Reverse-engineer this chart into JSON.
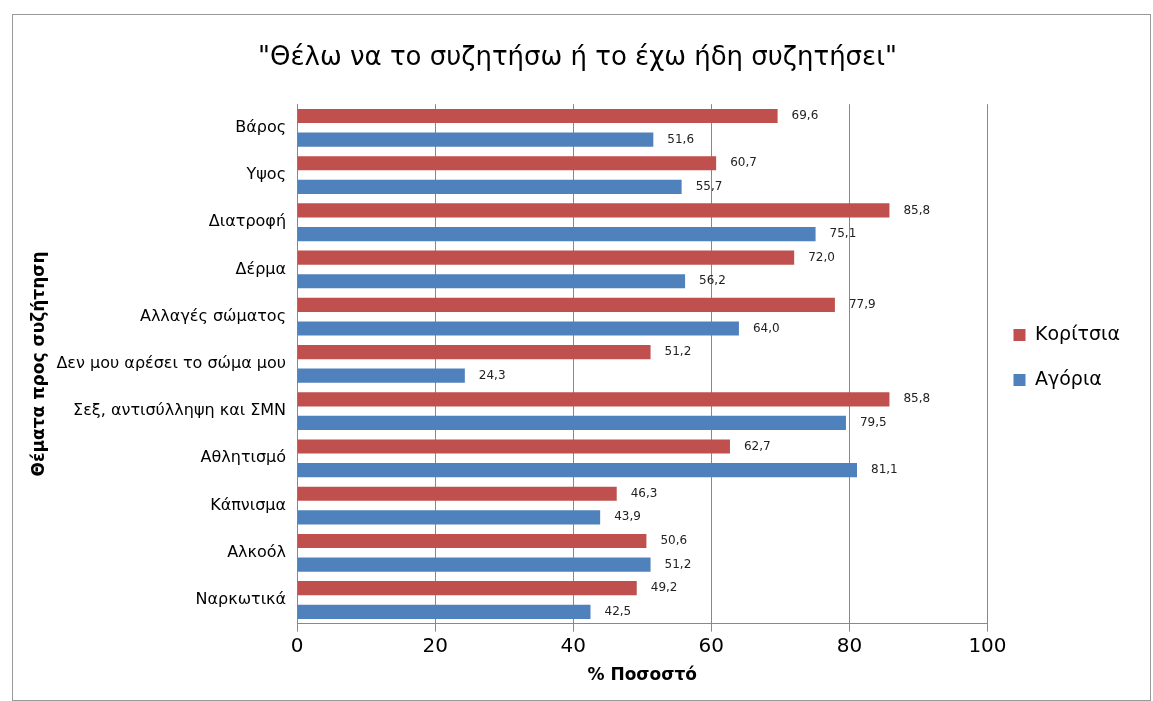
{
  "chart_data": {
    "type": "bar",
    "orientation": "horizontal",
    "title": "\"Θέλω να το συζητήσω ή το έχω ήδη συζητήσει\"",
    "xlabel": "% Ποσοστό",
    "ylabel": "Θέματα προς συζήτηση",
    "categories": [
      "Βάρος",
      "Υψος",
      "Διατροφή",
      "Δέρμα",
      "Αλλαγές σώματος",
      "Δεν μου αρέσει το σώμα μου",
      "Σεξ, αντισύλληψη και ΣΜΝ",
      "Αθλητισμό",
      "Κάπνισμα",
      "Αλκοόλ",
      "Ναρκωτικά"
    ],
    "series": [
      {
        "name": "Κορίτσια",
        "color": "#c0504d",
        "values": [
          69.6,
          60.7,
          85.8,
          72.0,
          77.9,
          51.2,
          85.8,
          62.7,
          46.3,
          50.6,
          49.2
        ],
        "value_labels": [
          "69,6",
          "60,7",
          "85,8",
          "72,0",
          "77,9",
          "51,2",
          "85,8",
          "62,7",
          "46,3",
          "50,6",
          "49,2"
        ]
      },
      {
        "name": "Αγόρια",
        "color": "#4f81bd",
        "values": [
          51.6,
          55.7,
          75.1,
          56.2,
          64.0,
          24.3,
          79.5,
          81.1,
          43.9,
          51.2,
          42.5
        ],
        "value_labels": [
          "51,6",
          "55,7",
          "75,1",
          "56,2",
          "64,0",
          "24,3",
          "79,5",
          "81,1",
          "43,9",
          "51,2",
          "42,5"
        ]
      }
    ],
    "xlim": [
      0,
      100
    ],
    "xticks": [
      0,
      20,
      40,
      60,
      80,
      100
    ],
    "grid": "x",
    "legend": "right"
  }
}
